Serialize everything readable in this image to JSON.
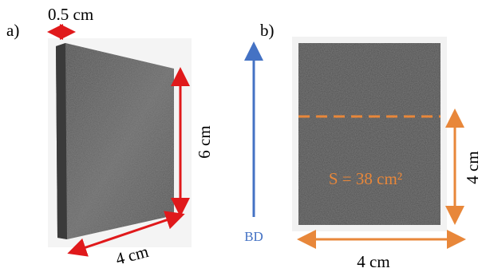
{
  "panel_a": {
    "label": "a)",
    "thickness": "0.5 cm",
    "height": "6 cm",
    "width": "4 cm"
  },
  "panel_b": {
    "label": "b)",
    "direction": "BD",
    "area": "S = 38 cm²",
    "height": "4 cm",
    "width": "4 cm"
  }
}
